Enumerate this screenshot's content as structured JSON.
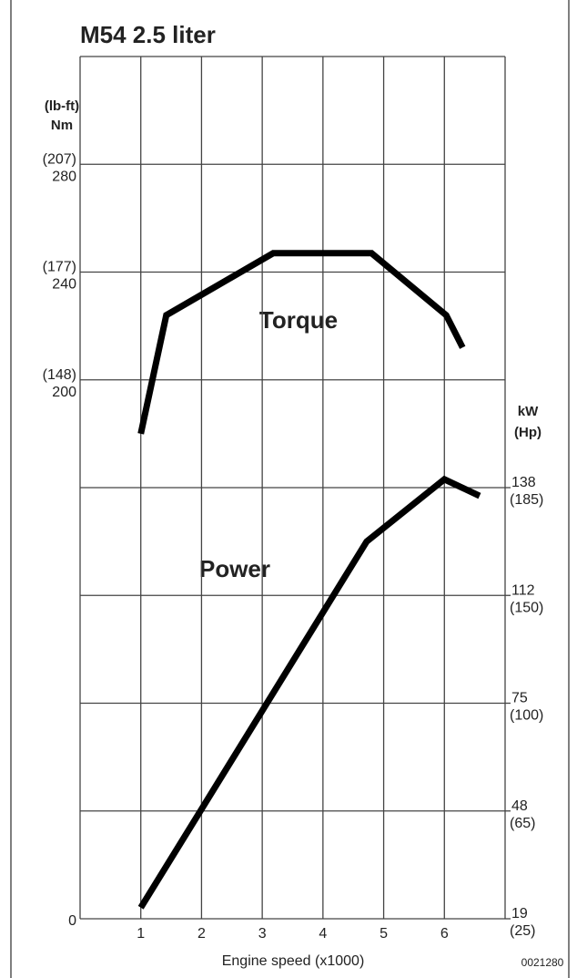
{
  "chart_data": {
    "type": "line",
    "title": "M54 2.5 liter",
    "x_label": "Engine speed (x1000)",
    "y_label": [
      "(lb-ft)",
      "Nm"
    ],
    "y2_label": [
      "kW",
      "(Hp)"
    ],
    "code": "0021280",
    "annotations": [
      "Torque",
      "Power"
    ],
    "xlim": [
      0,
      7
    ],
    "xticks": [
      1,
      2,
      3,
      4,
      5,
      6
    ],
    "ylim": [
      0,
      320
    ],
    "ygrid": [
      0,
      40,
      80,
      120,
      160,
      200,
      240,
      280,
      320
    ],
    "yticks": [
      0,
      {
        "value": 200,
        "label": "200",
        "alt_label": "(148)"
      },
      {
        "value": 240,
        "label": "240",
        "alt_label": "(177)"
      },
      {
        "value": 280,
        "label": "280",
        "alt_label": "(207)"
      }
    ],
    "y2ticks": [
      {
        "value": 19,
        "label": "19",
        "alt_label": "(25)"
      },
      {
        "value": 48,
        "label": "48",
        "alt_label": "(65)"
      },
      {
        "value": 75,
        "label": "75",
        "alt_label": "(100)"
      },
      {
        "value": 112,
        "label": "112",
        "alt_label": "(150)"
      },
      {
        "value": 138,
        "label": "138",
        "alt_label": "(185)"
      }
    ],
    "grid": true,
    "series": [
      {
        "name": "Torque",
        "color": "#000000",
        "x": [
          1.0,
          1.42,
          3.18,
          4.8,
          6.03,
          6.3
        ],
        "values": [
          180,
          224,
          247,
          247,
          224,
          212
        ]
      },
      {
        "name": "Power",
        "color": "#000000",
        "axis": "y2",
        "x": [
          1.0,
          4.72,
          6.0,
          6.58
        ],
        "values": [
          22,
          125,
          140,
          136
        ]
      }
    ]
  }
}
